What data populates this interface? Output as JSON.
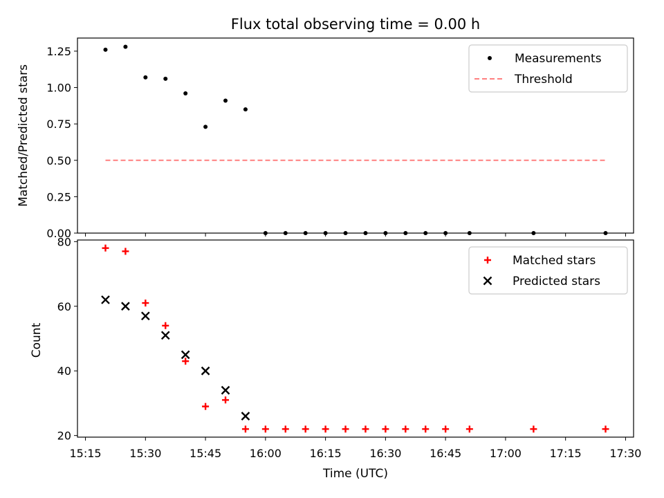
{
  "chart_data": {
    "title": "Flux total observing time = 0.00 h",
    "xlabel": "Time (UTC)",
    "x_ticks": [
      "15:15",
      "15:30",
      "15:45",
      "16:00",
      "16:15",
      "16:30",
      "16:45",
      "17:00",
      "17:15",
      "17:30"
    ],
    "x": [
      "15:20",
      "15:25",
      "15:30",
      "15:35",
      "15:40",
      "15:45",
      "15:50",
      "15:55",
      "16:00",
      "16:05",
      "16:10",
      "16:15",
      "16:20",
      "16:25",
      "16:30",
      "16:35",
      "16:40",
      "16:45",
      "16:51",
      "17:07",
      "17:25"
    ],
    "xlim": [
      "15:13",
      "17:32"
    ],
    "panels": [
      {
        "type": "scatter",
        "ylabel": "Matched/Predicted stars",
        "ylim": [
          0,
          1.34
        ],
        "y_ticks": [
          "0.00",
          "0.25",
          "0.50",
          "0.75",
          "1.00",
          "1.25"
        ],
        "legend_position": "top-right",
        "series": [
          {
            "name": "Measurements",
            "marker": "dot",
            "color": "#000000",
            "values": [
              1.26,
              1.28,
              1.07,
              1.06,
              0.96,
              0.73,
              0.91,
              0.85,
              0,
              0,
              0,
              0,
              0,
              0,
              0,
              0,
              0,
              0,
              0,
              0,
              0
            ]
          },
          {
            "name": "Threshold",
            "marker": "dashed-line",
            "color": "#ff7f7f",
            "x_range": [
              "15:20",
              "17:25"
            ],
            "value": 0.5
          }
        ]
      },
      {
        "type": "scatter",
        "ylabel": "Count",
        "ylim": [
          19.5,
          80.5
        ],
        "y_ticks": [
          "20",
          "40",
          "60",
          "80"
        ],
        "legend_position": "top-right",
        "series": [
          {
            "name": "Matched stars",
            "marker": "plus",
            "color": "#ff0000",
            "values": [
              78,
              77,
              61,
              54,
              43,
              29,
              31,
              22,
              22,
              22,
              22,
              22,
              22,
              22,
              22,
              22,
              22,
              22,
              22,
              22,
              22
            ]
          },
          {
            "name": "Predicted stars",
            "marker": "x",
            "color": "#000000",
            "values": [
              62,
              60,
              57,
              51,
              45,
              40,
              34,
              26
            ]
          }
        ]
      }
    ]
  }
}
